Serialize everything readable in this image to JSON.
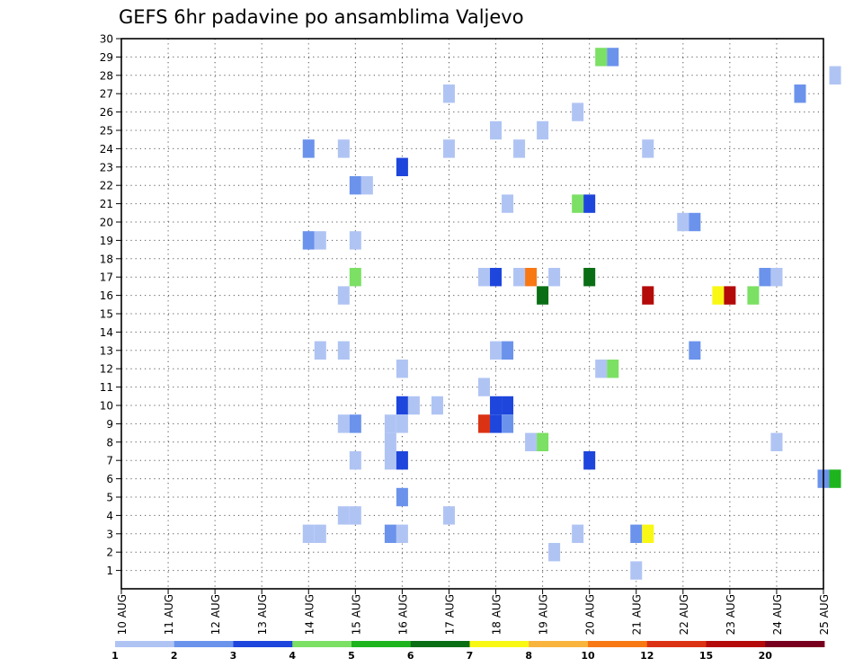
{
  "chart_data": {
    "type": "heatmap",
    "title": "GEFS 6hr padavine po ansamblima Valjevo",
    "x_ticks": [
      "10 AUG",
      "11 AUG",
      "12 AUG",
      "13 AUG",
      "14 AUG",
      "15 AUG",
      "16 AUG",
      "17 AUG",
      "18 AUG",
      "19 AUG",
      "20 AUG",
      "21 AUG",
      "22 AUG",
      "23 AUG",
      "24 AUG",
      "25 AUG"
    ],
    "y_ticks": [
      "1",
      "2",
      "3",
      "4",
      "5",
      "6",
      "7",
      "8",
      "9",
      "10",
      "11",
      "12",
      "13",
      "14",
      "15",
      "16",
      "17",
      "18",
      "19",
      "20",
      "21",
      "22",
      "23",
      "24",
      "25",
      "26",
      "27",
      "28",
      "29",
      "30"
    ],
    "xlim": [
      "10 AUG",
      "25 AUG"
    ],
    "ylim": [
      0,
      30
    ],
    "grid": true,
    "colorbar": {
      "colors": [
        "#b0c4f4",
        "#6b93ec",
        "#1e46dc",
        "#7be064",
        "#1eb41e",
        "#0a6e14",
        "#f8f814",
        "#f8b43c",
        "#f87814",
        "#dc3214",
        "#b40a0a",
        "#78001e"
      ],
      "labels": [
        "1",
        "2",
        "3",
        "4",
        "5",
        "6",
        "7",
        "8",
        "10",
        "12",
        "15",
        "20"
      ]
    },
    "cells": [
      {
        "day": 10.25,
        "member": 29,
        "level": 4
      },
      {
        "day": 10.5,
        "member": 29,
        "level": 2
      },
      {
        "day": 15.25,
        "member": 28,
        "level": 1
      },
      {
        "day": 7.0,
        "member": 27,
        "level": 1
      },
      {
        "day": 14.5,
        "member": 27,
        "level": 2
      },
      {
        "day": 9.75,
        "member": 26,
        "level": 1
      },
      {
        "day": 8.0,
        "member": 25,
        "level": 1
      },
      {
        "day": 9.0,
        "member": 25,
        "level": 1
      },
      {
        "day": 4.0,
        "member": 24,
        "level": 2
      },
      {
        "day": 4.75,
        "member": 24,
        "level": 1
      },
      {
        "day": 7.0,
        "member": 24,
        "level": 1
      },
      {
        "day": 8.5,
        "member": 24,
        "level": 1
      },
      {
        "day": 11.25,
        "member": 24,
        "level": 1
      },
      {
        "day": 6.0,
        "member": 23,
        "level": 3
      },
      {
        "day": 5.0,
        "member": 22,
        "level": 2
      },
      {
        "day": 5.25,
        "member": 22,
        "level": 1
      },
      {
        "day": 8.25,
        "member": 21,
        "level": 1
      },
      {
        "day": 9.75,
        "member": 21,
        "level": 4
      },
      {
        "day": 10.0,
        "member": 21,
        "level": 3
      },
      {
        "day": 12.0,
        "member": 20,
        "level": 1
      },
      {
        "day": 12.25,
        "member": 20,
        "level": 2
      },
      {
        "day": 4.0,
        "member": 19,
        "level": 2
      },
      {
        "day": 4.25,
        "member": 19,
        "level": 1
      },
      {
        "day": 5.0,
        "member": 19,
        "level": 1
      },
      {
        "day": 5.0,
        "member": 17,
        "level": 4
      },
      {
        "day": 7.75,
        "member": 17,
        "level": 1
      },
      {
        "day": 8.0,
        "member": 17,
        "level": 3
      },
      {
        "day": 8.5,
        "member": 17,
        "level": 1
      },
      {
        "day": 8.75,
        "member": 17,
        "level": 9
      },
      {
        "day": 9.25,
        "member": 17,
        "level": 1
      },
      {
        "day": 10.0,
        "member": 17,
        "level": 6
      },
      {
        "day": 13.75,
        "member": 17,
        "level": 2
      },
      {
        "day": 14.0,
        "member": 17,
        "level": 1
      },
      {
        "day": 4.75,
        "member": 16,
        "level": 1
      },
      {
        "day": 9.0,
        "member": 16,
        "level": 6
      },
      {
        "day": 11.25,
        "member": 16,
        "level": 11
      },
      {
        "day": 12.75,
        "member": 16,
        "level": 7
      },
      {
        "day": 13.0,
        "member": 16,
        "level": 11
      },
      {
        "day": 13.5,
        "member": 16,
        "level": 4
      },
      {
        "day": 4.25,
        "member": 13,
        "level": 1
      },
      {
        "day": 4.75,
        "member": 13,
        "level": 1
      },
      {
        "day": 8.0,
        "member": 13,
        "level": 1
      },
      {
        "day": 8.25,
        "member": 13,
        "level": 2
      },
      {
        "day": 12.25,
        "member": 13,
        "level": 2
      },
      {
        "day": 6.0,
        "member": 12,
        "level": 1
      },
      {
        "day": 10.25,
        "member": 12,
        "level": 1
      },
      {
        "day": 10.5,
        "member": 12,
        "level": 4
      },
      {
        "day": 7.75,
        "member": 11,
        "level": 1
      },
      {
        "day": 6.0,
        "member": 10,
        "level": 3
      },
      {
        "day": 6.25,
        "member": 10,
        "level": 1
      },
      {
        "day": 6.75,
        "member": 10,
        "level": 1
      },
      {
        "day": 8.0,
        "member": 10,
        "level": 3
      },
      {
        "day": 8.25,
        "member": 10,
        "level": 3
      },
      {
        "day": 4.75,
        "member": 9,
        "level": 1
      },
      {
        "day": 5.0,
        "member": 9,
        "level": 2
      },
      {
        "day": 5.75,
        "member": 9,
        "level": 1
      },
      {
        "day": 6.0,
        "member": 9,
        "level": 1
      },
      {
        "day": 7.75,
        "member": 9,
        "level": 10
      },
      {
        "day": 8.0,
        "member": 9,
        "level": 3
      },
      {
        "day": 8.25,
        "member": 9,
        "level": 2
      },
      {
        "day": 5.75,
        "member": 8,
        "level": 1
      },
      {
        "day": 8.75,
        "member": 8,
        "level": 1
      },
      {
        "day": 9.0,
        "member": 8,
        "level": 4
      },
      {
        "day": 14.0,
        "member": 8,
        "level": 1
      },
      {
        "day": 5.0,
        "member": 7,
        "level": 1
      },
      {
        "day": 5.75,
        "member": 7,
        "level": 1
      },
      {
        "day": 6.0,
        "member": 7,
        "level": 3
      },
      {
        "day": 10.0,
        "member": 7,
        "level": 3
      },
      {
        "day": 15.0,
        "member": 6,
        "level": 2
      },
      {
        "day": 15.25,
        "member": 6,
        "level": 5
      },
      {
        "day": 6.0,
        "member": 5,
        "level": 2
      },
      {
        "day": 4.75,
        "member": 4,
        "level": 1
      },
      {
        "day": 5.0,
        "member": 4,
        "level": 1
      },
      {
        "day": 7.0,
        "member": 4,
        "level": 1
      },
      {
        "day": 4.0,
        "member": 3,
        "level": 1
      },
      {
        "day": 4.25,
        "member": 3,
        "level": 1
      },
      {
        "day": 5.75,
        "member": 3,
        "level": 2
      },
      {
        "day": 6.0,
        "member": 3,
        "level": 1
      },
      {
        "day": 9.75,
        "member": 3,
        "level": 1
      },
      {
        "day": 11.0,
        "member": 3,
        "level": 2
      },
      {
        "day": 11.25,
        "member": 3,
        "level": 7
      },
      {
        "day": 9.25,
        "member": 2,
        "level": 1
      },
      {
        "day": 11.0,
        "member": 1,
        "level": 1
      }
    ]
  }
}
